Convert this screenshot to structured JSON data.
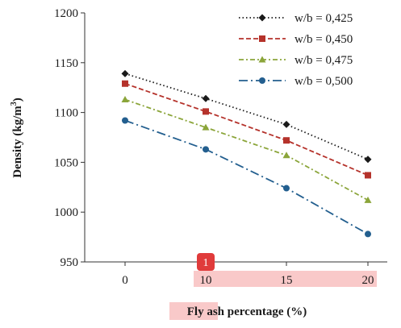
{
  "chart_data": {
    "type": "line",
    "title": "",
    "xlabel_parts": [
      "Fly ash",
      " percentage (%)"
    ],
    "ylabel": "Density (kg/m",
    "ylabel_sup": "3",
    "ylabel_close": ")",
    "x": [
      0,
      10,
      15,
      20
    ],
    "x_tick_labels": [
      "0",
      "10",
      "15",
      "20"
    ],
    "ylim": [
      950,
      1200
    ],
    "y_ticks": [
      950,
      1000,
      1050,
      1100,
      1150,
      1200
    ],
    "y_tick_labels": [
      "950",
      "1000",
      "1050",
      "1100",
      "1150",
      "1200"
    ],
    "grid": false,
    "legend_position": "top-right",
    "series": [
      {
        "name": "w/b = 0,425",
        "values": [
          1139,
          1114,
          1088,
          1053
        ],
        "color": "#1a1a1a",
        "marker": "diamond",
        "dash": "dotted"
      },
      {
        "name": "w/b = 0,450",
        "values": [
          1129,
          1101,
          1072,
          1037
        ],
        "color": "#b5322b",
        "marker": "square",
        "dash": "dashed"
      },
      {
        "name": "w/b = 0,475",
        "values": [
          1113,
          1085,
          1057,
          1012
        ],
        "color": "#8ba53a",
        "marker": "triangle",
        "dash": "dashdot"
      },
      {
        "name": "w/b = 0,500",
        "values": [
          1092,
          1063,
          1024,
          978
        ],
        "color": "#235f8f",
        "marker": "circle",
        "dash": "longdashdot"
      }
    ]
  },
  "annotations": {
    "badge_label": "1",
    "badge_color": "#e03b3b",
    "highlight_color": "#f9c9c9"
  }
}
